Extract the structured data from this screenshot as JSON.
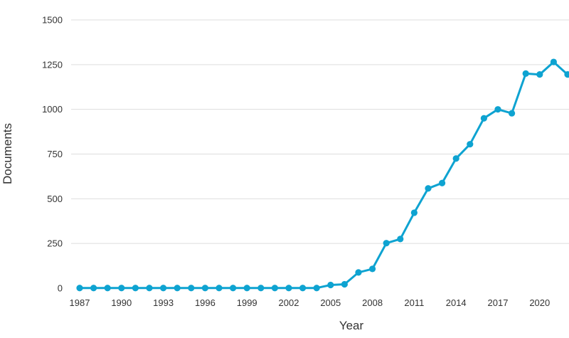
{
  "chart_data": {
    "type": "line",
    "title": "",
    "xlabel": "Year",
    "ylabel": "Documents",
    "xlim": [
      1987,
      2022
    ],
    "ylim": [
      0,
      1500
    ],
    "x_ticks": [
      1987,
      1990,
      1993,
      1996,
      1999,
      2002,
      2005,
      2008,
      2011,
      2014,
      2017,
      2020
    ],
    "y_ticks": [
      0,
      250,
      500,
      750,
      1000,
      1250,
      1500
    ],
    "grid": "horizontal",
    "legend": "none",
    "color": "#0ea3d1",
    "series": [
      {
        "x": [
          1987,
          1988,
          1989,
          1990,
          1991,
          1992,
          1993,
          1994,
          1995,
          1996,
          1997,
          1998,
          1999,
          2000,
          2001,
          2002,
          2003,
          2004,
          2005,
          2006,
          2007,
          2008,
          2009,
          2010,
          2011,
          2012,
          2013,
          2014,
          2015,
          2016,
          2017,
          2018,
          2019,
          2020,
          2021,
          2022
        ],
        "values": [
          1,
          1,
          1,
          1,
          1,
          1,
          1,
          1,
          1,
          1,
          1,
          1,
          1,
          1,
          1,
          1,
          1,
          1,
          18,
          22,
          88,
          108,
          252,
          275,
          422,
          558,
          588,
          725,
          805,
          950,
          1000,
          978,
          1200,
          1195,
          1265,
          1195
        ]
      }
    ]
  }
}
